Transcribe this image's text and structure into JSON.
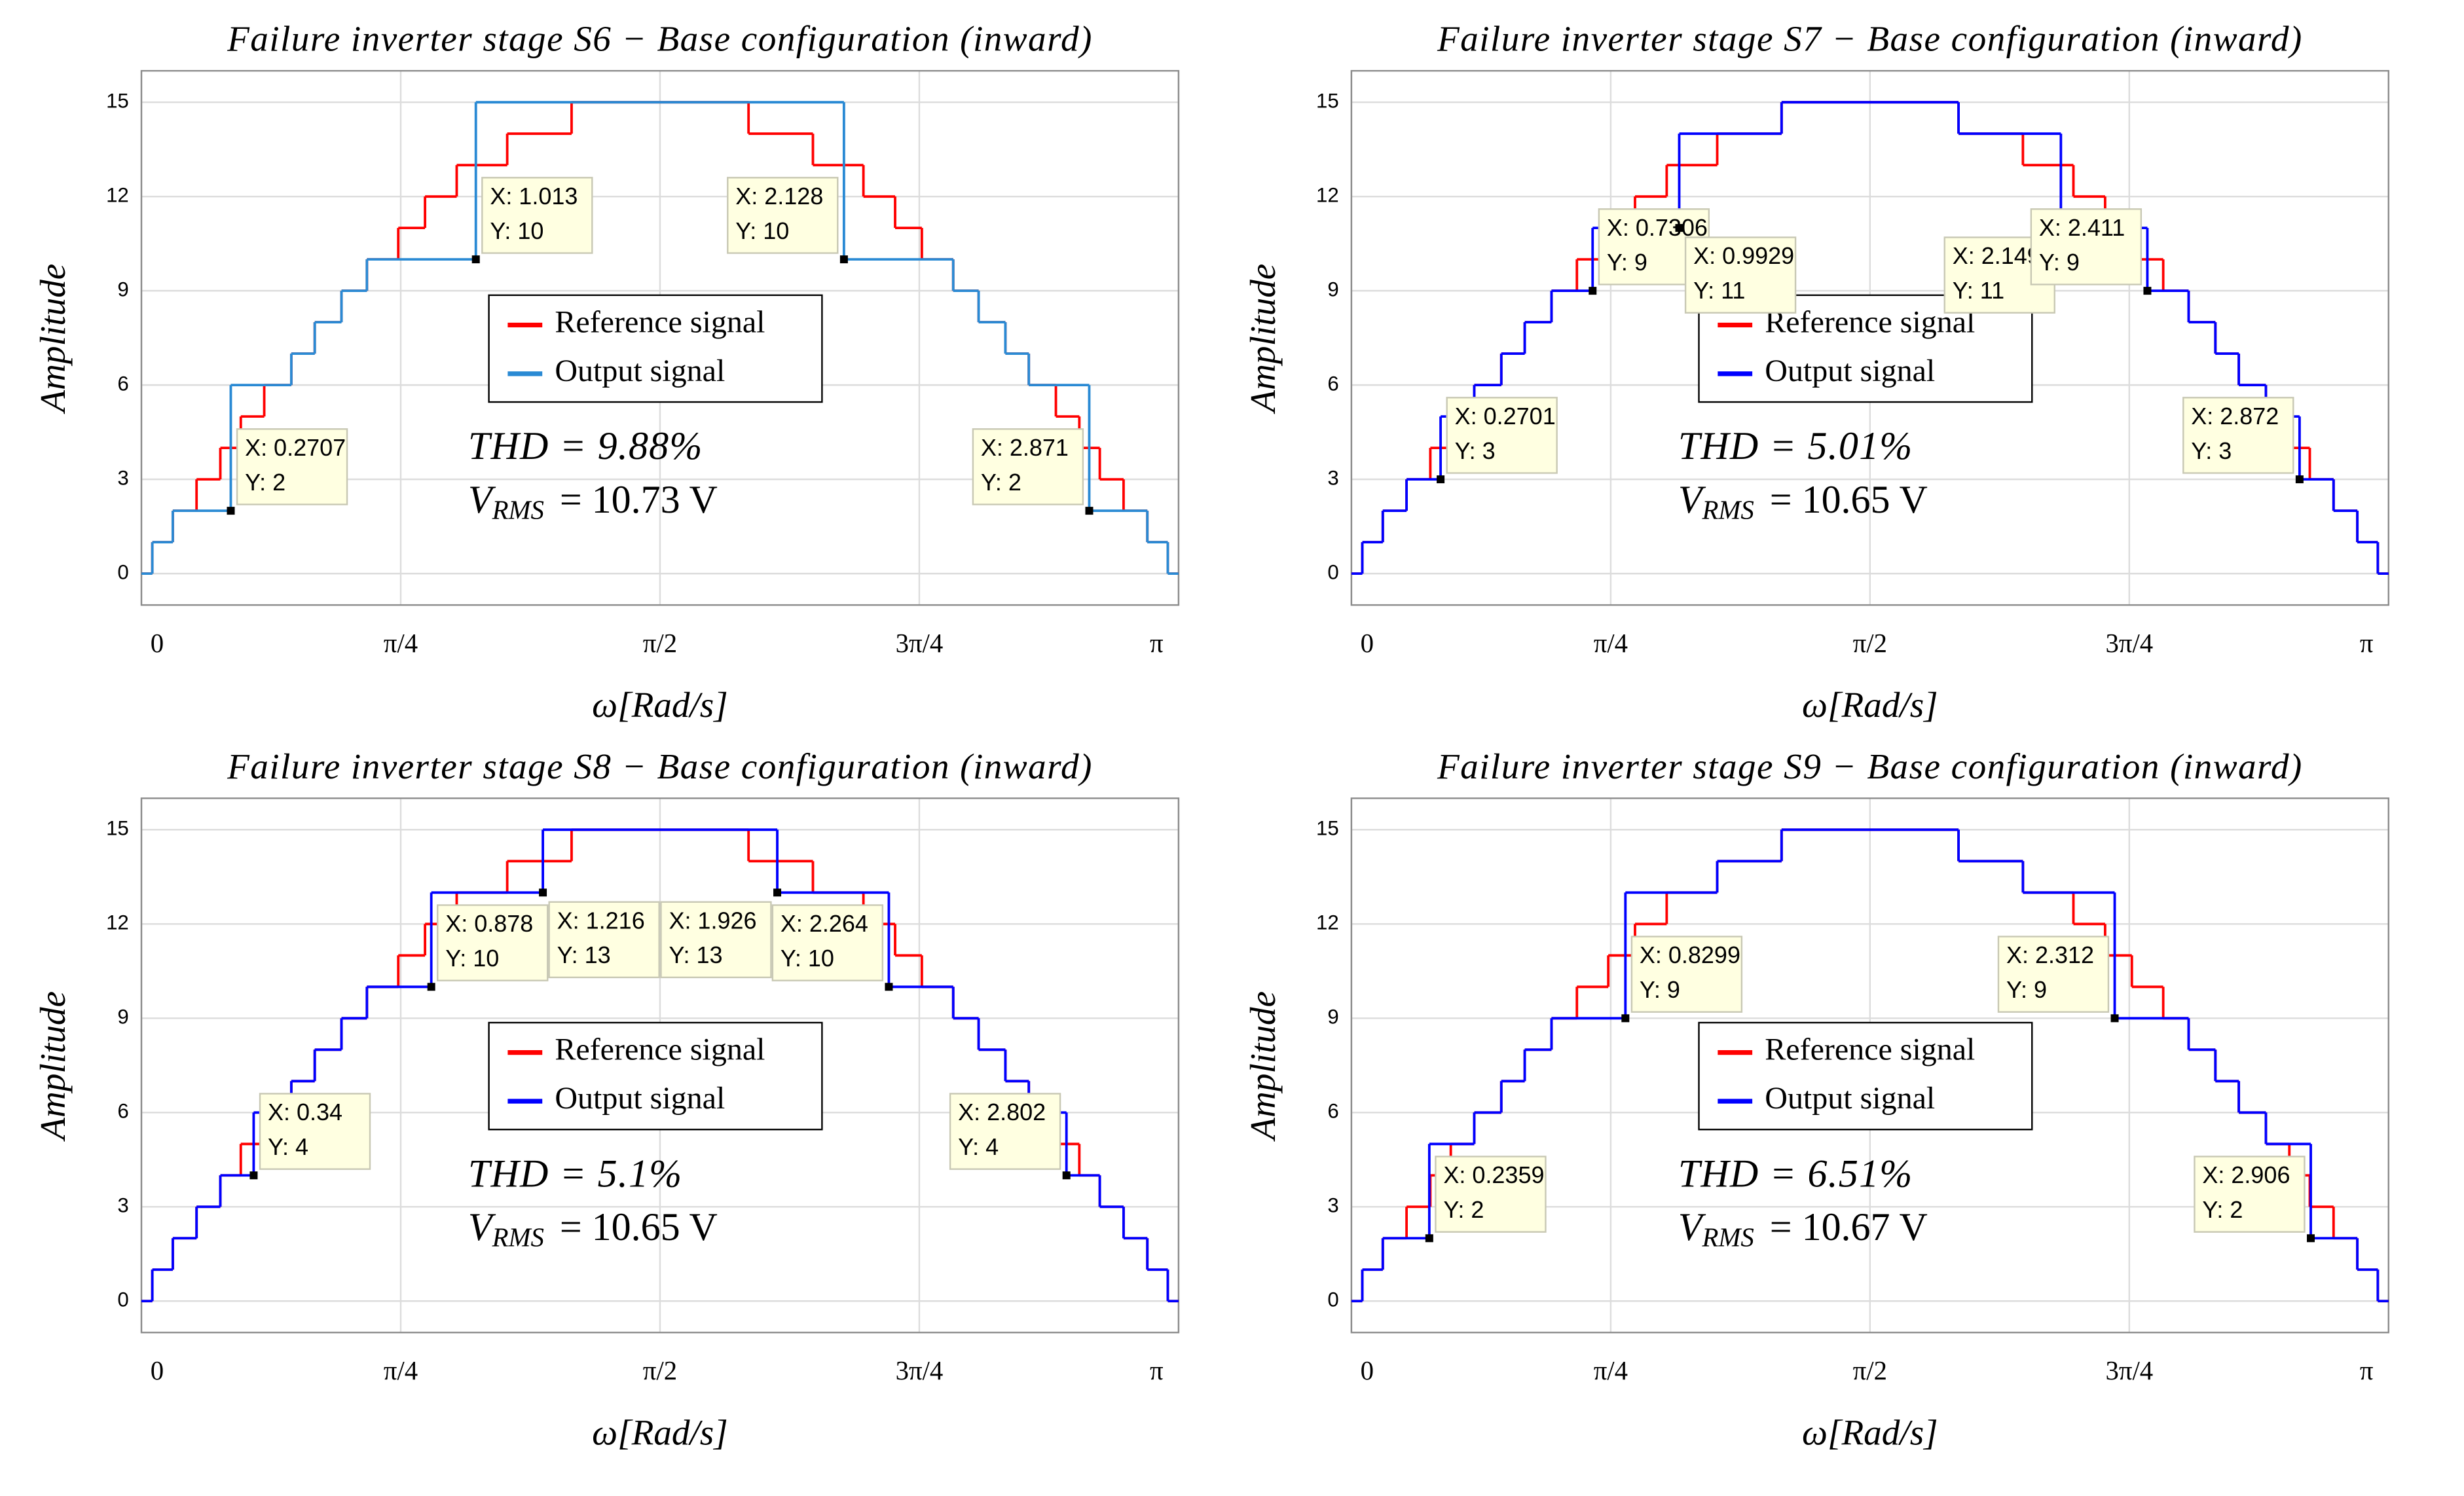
{
  "chart_data": [
    {
      "type": "line",
      "step": "post",
      "title": "Failure inverter stage S6 − Base configuration (inward)",
      "xlabel": "ω[Rad/s]",
      "ylabel": "Amplitude",
      "xlim": [
        0,
        3.1416
      ],
      "ylim": [
        -1,
        16
      ],
      "xticks": [
        0,
        {
          "value": 0.7854,
          "label": "π/4"
        },
        {
          "value": 1.5708,
          "label": "π/2"
        },
        {
          "value": 2.3562,
          "label": "3π/4"
        },
        {
          "value": 3.1416,
          "label": "π"
        }
      ],
      "yticks": [
        0,
        3,
        6,
        9,
        12,
        15
      ],
      "grid": true,
      "legend": "center",
      "series": [
        {
          "name": "Reference signal",
          "color": "#ff0000",
          "x": [
            0,
            0.033,
            0.095,
            0.167,
            0.239,
            0.301,
            0.372,
            0.454,
            0.525,
            0.606,
            0.683,
            0.778,
            0.859,
            0.955,
            1.108,
            1.303,
            1.839,
            2.034,
            2.187,
            2.283,
            2.364,
            2.459,
            2.536,
            2.617,
            2.688,
            2.77,
            2.841,
            2.903,
            2.975,
            3.047,
            3.109,
            3.1416
          ],
          "values": [
            0,
            1,
            2,
            3,
            4,
            5,
            6,
            7,
            8,
            9,
            10,
            11,
            12,
            13,
            14,
            15,
            14,
            13,
            12,
            11,
            10,
            9,
            8,
            7,
            6,
            5,
            4,
            3,
            2,
            1,
            0,
            0
          ]
        },
        {
          "name": "Output signal",
          "color": "#2a8ad4",
          "x": [
            0,
            0.033,
            0.095,
            0.2707,
            0.454,
            0.525,
            0.606,
            0.683,
            1.013,
            2.128,
            2.459,
            2.536,
            2.617,
            2.688,
            2.871,
            3.047,
            3.109,
            3.1416
          ],
          "values": [
            0,
            1,
            2,
            6,
            7,
            8,
            9,
            10,
            15,
            10,
            9,
            8,
            7,
            6,
            2,
            1,
            0,
            0
          ]
        }
      ],
      "datatips": [
        {
          "x": 0.2707,
          "y": 2,
          "text": [
            "X: 0.2707",
            "Y: 2"
          ]
        },
        {
          "x": 1.013,
          "y": 10,
          "text": [
            "X: 1.013",
            "Y: 10"
          ]
        },
        {
          "x": 2.128,
          "y": 10,
          "text": [
            "X: 2.128",
            "Y: 10"
          ]
        },
        {
          "x": 2.871,
          "y": 2,
          "text": [
            "X: 2.871",
            "Y: 2"
          ]
        }
      ],
      "thd": "THD = 9.88%",
      "vrms": {
        "symbol": "V",
        "subscript": "RMS",
        "value": "= 10.73 V"
      }
    },
    {
      "type": "line",
      "step": "post",
      "title": "Failure inverter stage S7 − Base configuration (inward)",
      "xlabel": "ω[Rad/s]",
      "ylabel": "Amplitude",
      "xlim": [
        0,
        3.1416
      ],
      "ylim": [
        -1,
        16
      ],
      "xticks": [
        0,
        {
          "value": 0.7854,
          "label": "π/4"
        },
        {
          "value": 1.5708,
          "label": "π/2"
        },
        {
          "value": 2.3562,
          "label": "3π/4"
        },
        {
          "value": 3.1416,
          "label": "π"
        }
      ],
      "yticks": [
        0,
        3,
        6,
        9,
        12,
        15
      ],
      "grid": true,
      "legend": "center",
      "series": [
        {
          "name": "Reference signal",
          "color": "#ff0000",
          "x": [
            0,
            0.033,
            0.095,
            0.167,
            0.239,
            0.301,
            0.372,
            0.454,
            0.525,
            0.606,
            0.683,
            0.778,
            0.859,
            0.955,
            1.108,
            1.303,
            1.839,
            2.034,
            2.187,
            2.283,
            2.364,
            2.459,
            2.536,
            2.617,
            2.688,
            2.77,
            2.841,
            2.903,
            2.975,
            3.047,
            3.109,
            3.1416
          ],
          "values": [
            0,
            1,
            2,
            3,
            4,
            5,
            6,
            7,
            8,
            9,
            10,
            11,
            12,
            13,
            14,
            15,
            14,
            13,
            12,
            11,
            10,
            9,
            8,
            7,
            6,
            5,
            4,
            3,
            2,
            1,
            0,
            0
          ]
        },
        {
          "name": "Output signal",
          "color": "#0000ff",
          "x": [
            0,
            0.033,
            0.095,
            0.167,
            0.2701,
            0.372,
            0.454,
            0.525,
            0.606,
            0.7306,
            0.9929,
            1.303,
            1.839,
            2.149,
            2.411,
            2.536,
            2.617,
            2.688,
            2.77,
            2.872,
            2.975,
            3.047,
            3.109,
            3.1416
          ],
          "values": [
            0,
            1,
            2,
            3,
            5,
            6,
            7,
            8,
            9,
            11,
            14,
            15,
            14,
            11,
            9,
            8,
            7,
            6,
            5,
            3,
            2,
            1,
            0,
            0
          ]
        }
      ],
      "datatips": [
        {
          "x": 0.2701,
          "y": 3,
          "text": [
            "X: 0.2701",
            "Y: 3"
          ]
        },
        {
          "x": 0.7306,
          "y": 9,
          "text": [
            "X: 0.7306",
            "Y: 9"
          ]
        },
        {
          "x": 0.9929,
          "y": 11,
          "text": [
            "X: 0.9929",
            "Y: 11"
          ]
        },
        {
          "x": 2.149,
          "y": 11,
          "text": [
            "X: 2.149",
            "Y: 11"
          ]
        },
        {
          "x": 2.411,
          "y": 9,
          "text": [
            "X: 2.411",
            "Y: 9"
          ]
        },
        {
          "x": 2.872,
          "y": 3,
          "text": [
            "X: 2.872",
            "Y: 3"
          ]
        }
      ],
      "thd": "THD = 5.01%",
      "vrms": {
        "symbol": "V",
        "subscript": "RMS",
        "value": "= 10.65 V"
      }
    },
    {
      "type": "line",
      "step": "post",
      "title": "Failure inverter stage S8 − Base configuration (inward)",
      "xlabel": "ω[Rad/s]",
      "ylabel": "Amplitude",
      "xlim": [
        0,
        3.1416
      ],
      "ylim": [
        -1,
        16
      ],
      "xticks": [
        0,
        {
          "value": 0.7854,
          "label": "π/4"
        },
        {
          "value": 1.5708,
          "label": "π/2"
        },
        {
          "value": 2.3562,
          "label": "3π/4"
        },
        {
          "value": 3.1416,
          "label": "π"
        }
      ],
      "yticks": [
        0,
        3,
        6,
        9,
        12,
        15
      ],
      "grid": true,
      "legend": "center",
      "series": [
        {
          "name": "Reference signal",
          "color": "#ff0000",
          "x": [
            0,
            0.033,
            0.095,
            0.167,
            0.239,
            0.301,
            0.372,
            0.454,
            0.525,
            0.606,
            0.683,
            0.778,
            0.859,
            0.955,
            1.108,
            1.303,
            1.839,
            2.034,
            2.187,
            2.283,
            2.364,
            2.459,
            2.536,
            2.617,
            2.688,
            2.77,
            2.841,
            2.903,
            2.975,
            3.047,
            3.109,
            3.1416
          ],
          "values": [
            0,
            1,
            2,
            3,
            4,
            5,
            6,
            7,
            8,
            9,
            10,
            11,
            12,
            13,
            14,
            15,
            14,
            13,
            12,
            11,
            10,
            9,
            8,
            7,
            6,
            5,
            4,
            3,
            2,
            1,
            0,
            0
          ]
        },
        {
          "name": "Output signal",
          "color": "#0000ff",
          "x": [
            0,
            0.033,
            0.095,
            0.167,
            0.239,
            0.34,
            0.454,
            0.525,
            0.606,
            0.683,
            0.878,
            1.216,
            1.926,
            2.264,
            2.459,
            2.536,
            2.617,
            2.688,
            2.802,
            2.903,
            2.975,
            3.047,
            3.109,
            3.1416
          ],
          "values": [
            0,
            1,
            2,
            3,
            4,
            6,
            7,
            8,
            9,
            10,
            13,
            15,
            13,
            10,
            9,
            8,
            7,
            6,
            4,
            3,
            2,
            1,
            0,
            0
          ]
        }
      ],
      "datatips": [
        {
          "x": 0.34,
          "y": 4,
          "text": [
            "X: 0.34",
            "Y: 4"
          ]
        },
        {
          "x": 0.878,
          "y": 10,
          "text": [
            "X: 0.878",
            "Y: 10"
          ]
        },
        {
          "x": 1.216,
          "y": 13,
          "text": [
            "X: 1.216",
            "Y: 13"
          ]
        },
        {
          "x": 1.926,
          "y": 13,
          "text": [
            "X: 1.926",
            "Y: 13"
          ]
        },
        {
          "x": 2.264,
          "y": 10,
          "text": [
            "X: 2.264",
            "Y: 10"
          ]
        },
        {
          "x": 2.802,
          "y": 4,
          "text": [
            "X: 2.802",
            "Y: 4"
          ]
        }
      ],
      "thd": "THD = 5.1%",
      "vrms": {
        "symbol": "V",
        "subscript": "RMS",
        "value": "= 10.65 V"
      }
    },
    {
      "type": "line",
      "step": "post",
      "title": "Failure inverter stage S9 − Base configuration (inward)",
      "xlabel": "ω[Rad/s]",
      "ylabel": "Amplitude",
      "xlim": [
        0,
        3.1416
      ],
      "ylim": [
        -1,
        16
      ],
      "xticks": [
        0,
        {
          "value": 0.7854,
          "label": "π/4"
        },
        {
          "value": 1.5708,
          "label": "π/2"
        },
        {
          "value": 2.3562,
          "label": "3π/4"
        },
        {
          "value": 3.1416,
          "label": "π"
        }
      ],
      "yticks": [
        0,
        3,
        6,
        9,
        12,
        15
      ],
      "grid": true,
      "legend": "center",
      "series": [
        {
          "name": "Reference signal",
          "color": "#ff0000",
          "x": [
            0,
            0.033,
            0.095,
            0.167,
            0.239,
            0.301,
            0.372,
            0.454,
            0.525,
            0.606,
            0.683,
            0.778,
            0.859,
            0.955,
            1.108,
            1.303,
            1.839,
            2.034,
            2.187,
            2.283,
            2.364,
            2.459,
            2.536,
            2.617,
            2.688,
            2.77,
            2.841,
            2.903,
            2.975,
            3.047,
            3.109,
            3.1416
          ],
          "values": [
            0,
            1,
            2,
            3,
            4,
            5,
            6,
            7,
            8,
            9,
            10,
            11,
            12,
            13,
            14,
            15,
            14,
            13,
            12,
            11,
            10,
            9,
            8,
            7,
            6,
            5,
            4,
            3,
            2,
            1,
            0,
            0
          ]
        },
        {
          "name": "Output signal",
          "color": "#0000ff",
          "x": [
            0,
            0.033,
            0.095,
            0.2359,
            0.372,
            0.454,
            0.525,
            0.606,
            0.8299,
            1.108,
            1.303,
            1.839,
            2.034,
            2.312,
            2.536,
            2.617,
            2.688,
            2.77,
            2.906,
            3.047,
            3.109,
            3.1416
          ],
          "values": [
            0,
            1,
            2,
            5,
            6,
            7,
            8,
            9,
            13,
            14,
            15,
            14,
            13,
            9,
            8,
            7,
            6,
            5,
            2,
            1,
            0,
            0
          ]
        }
      ],
      "datatips": [
        {
          "x": 0.2359,
          "y": 2,
          "text": [
            "X: 0.2359",
            "Y: 2"
          ]
        },
        {
          "x": 0.8299,
          "y": 9,
          "text": [
            "X: 0.8299",
            "Y: 9"
          ]
        },
        {
          "x": 2.312,
          "y": 9,
          "text": [
            "X: 2.312",
            "Y: 9"
          ]
        },
        {
          "x": 2.906,
          "y": 2,
          "text": [
            "X: 2.906",
            "Y: 2"
          ]
        }
      ],
      "thd": "THD = 6.51%",
      "vrms": {
        "symbol": "V",
        "subscript": "RMS",
        "value": "= 10.67 V"
      }
    }
  ]
}
